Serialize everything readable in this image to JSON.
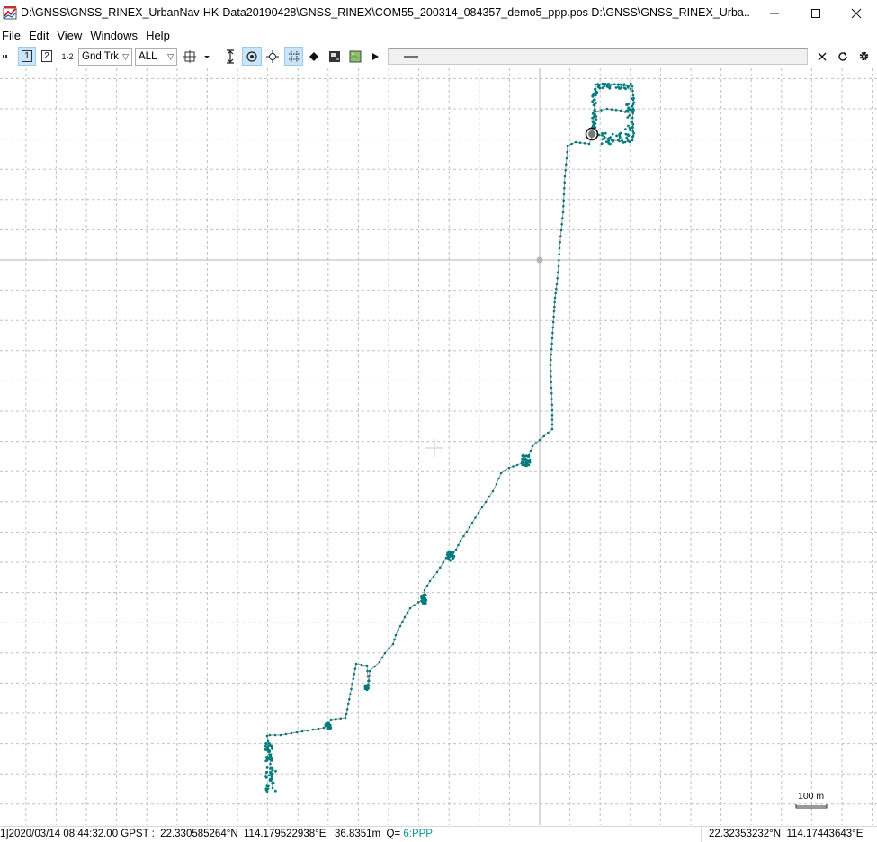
{
  "window": {
    "title": "D:\\GNSS\\GNSS_RINEX_UrbanNav-HK-Data20190428\\GNSS_RINEX\\COM55_200314_084357_demo5_ppp.pos D:\\GNSS\\GNSS_RINEX_Urba...",
    "minimize_glyph": "—",
    "maximize_glyph": "☐",
    "close_glyph": "✕"
  },
  "menu": {
    "items": [
      "File",
      "Edit",
      "View",
      "Windows",
      "Help"
    ]
  },
  "toolbar": {
    "btn1": "1",
    "btn2": "2",
    "btn12": "1-2",
    "plot_type": "Gnd Trk",
    "quality_filter": "ALL",
    "pressed": [
      "btn1",
      "center-origin",
      "grid"
    ]
  },
  "plot": {
    "scale_label": "100 m",
    "track_color": "#007b7b",
    "line_color": "#8c8c8c",
    "grid_color": "#c0c0c0"
  },
  "status": {
    "left_text": "1]2020/03/14 08:44:32.00 GPST :  22.330585264°N  114.179522938°E   36.8351m  Q= ",
    "quality": "6:PPP",
    "right_text": "22.32353232°N  114.17443643°E"
  }
}
